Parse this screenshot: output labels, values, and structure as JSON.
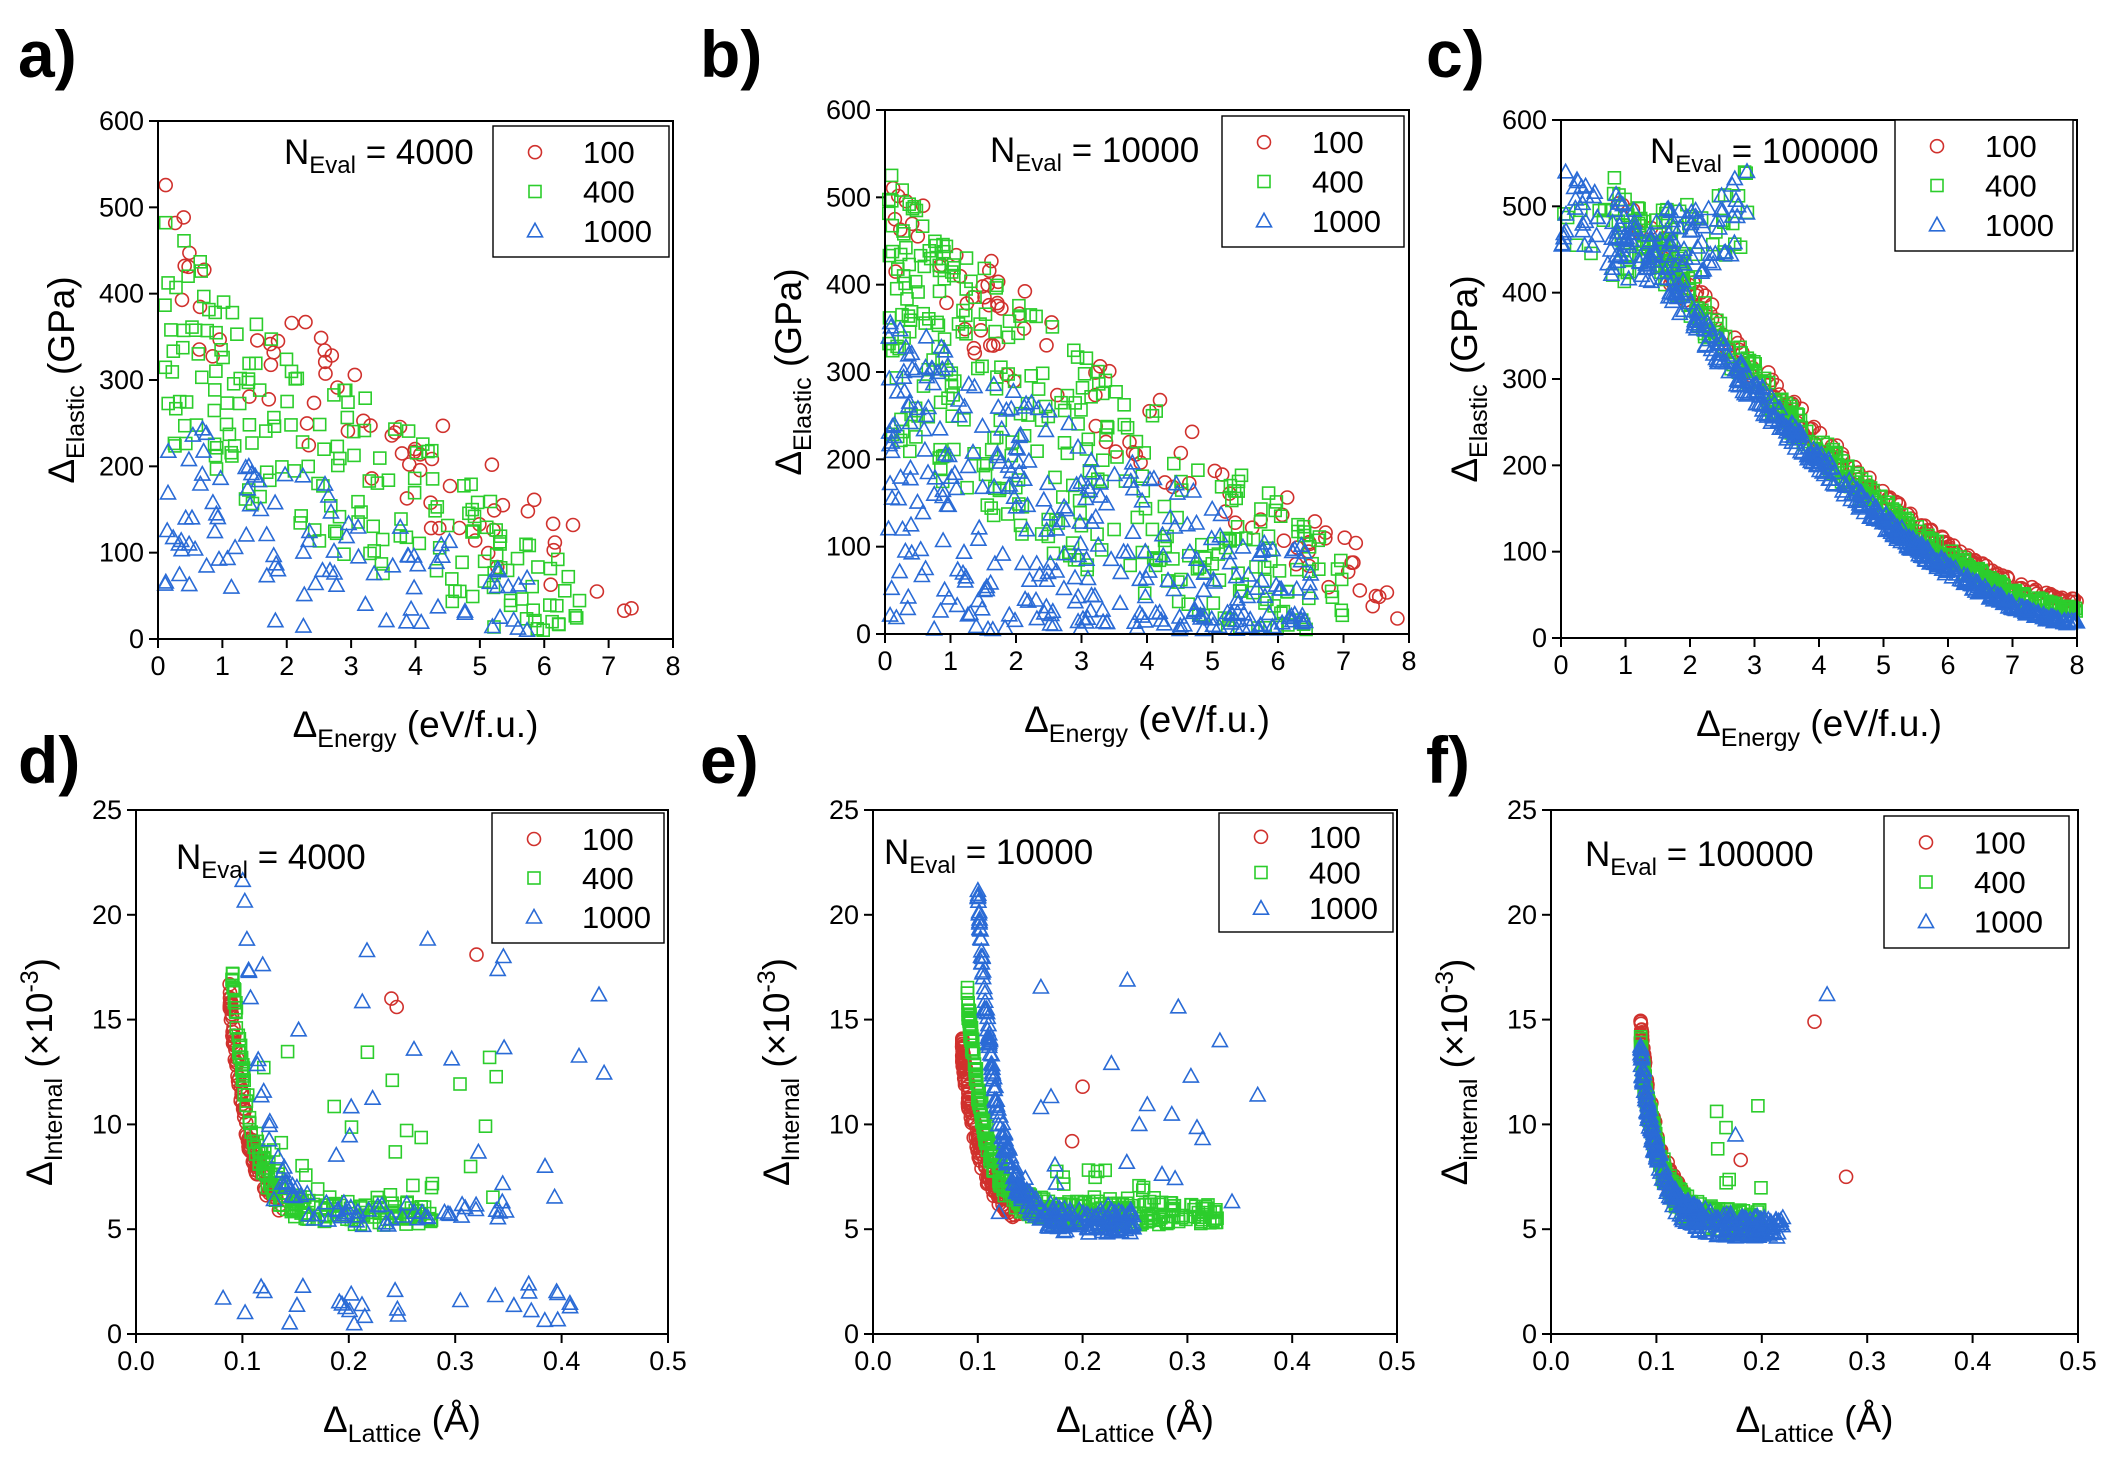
{
  "figure": {
    "width": 2104,
    "height": 1470
  },
  "colors": {
    "s100": "#d0312d",
    "s400": "#2ccd2c",
    "s1000": "#2a6bd6"
  },
  "chart_data": [
    {
      "id": "a",
      "panel_label": "a)",
      "type": "scatter",
      "annotation": "N_Eval = 4000",
      "annotation_main": "N",
      "annotation_sub": "Eval",
      "annotation_value": " = 4000",
      "xlabel_main": "Δ",
      "xlabel_sub": "Energy",
      "xlabel_rest": " (eV/f.u.)",
      "ylabel_main": "Δ",
      "ylabel_sub": "Elastic",
      "ylabel_rest": " (GPa)",
      "xlim": [
        0,
        8
      ],
      "ylim": [
        0,
        600
      ],
      "xticks": [
        0,
        1,
        2,
        3,
        4,
        5,
        6,
        7,
        8
      ],
      "xtick_labels": [
        "0",
        "1",
        "2",
        "3",
        "4",
        "5",
        "6",
        "7",
        "8"
      ],
      "yticks": [
        0,
        100,
        200,
        300,
        400,
        500,
        600
      ],
      "ytick_labels": [
        "0",
        "100",
        "200",
        "300",
        "400",
        "500",
        "600"
      ],
      "legend_position": "top-right",
      "series": [
        {
          "name": "100",
          "marker": "circle",
          "n": 70,
          "seed": 11,
          "shape": "decay",
          "gen": {
            "x0": 0.1,
            "x1": 7.5,
            "ytop": 470,
            "ybot": 40,
            "spread": 90,
            "floor": 10
          }
        },
        {
          "name": "400",
          "marker": "square",
          "n": 190,
          "seed": 23,
          "shape": "decay",
          "gen": {
            "x0": 0.1,
            "x1": 6.6,
            "ytop": 380,
            "ybot": 40,
            "spread": 130,
            "floor": 10
          }
        },
        {
          "name": "1000",
          "marker": "triangle",
          "n": 100,
          "seed": 37,
          "shape": "decay",
          "gen": {
            "x0": 0.1,
            "x1": 5.8,
            "ytop": 180,
            "ybot": 30,
            "spread": 110,
            "floor": 10
          }
        }
      ]
    },
    {
      "id": "b",
      "panel_label": "b)",
      "type": "scatter",
      "annotation": "N_Eval = 10000",
      "annotation_main": "N",
      "annotation_sub": "Eval",
      "annotation_value": " = 10000",
      "xlabel_main": "Δ",
      "xlabel_sub": "Energy",
      "xlabel_rest": " (eV/f.u.)",
      "ylabel_main": "Δ",
      "ylabel_sub": "Elastic",
      "ylabel_rest": " (GPa)",
      "xlim": [
        0,
        8
      ],
      "ylim": [
        0,
        600
      ],
      "xticks": [
        0,
        1,
        2,
        3,
        4,
        5,
        6,
        7,
        8
      ],
      "xtick_labels": [
        "0",
        "1",
        "2",
        "3",
        "4",
        "5",
        "6",
        "7",
        "8"
      ],
      "yticks": [
        0,
        100,
        200,
        300,
        400,
        500,
        600
      ],
      "ytick_labels": [
        "0",
        "100",
        "200",
        "300",
        "400",
        "500",
        "600"
      ],
      "legend_position": "top-right",
      "series": [
        {
          "name": "100",
          "marker": "circle",
          "n": 90,
          "seed": 41,
          "shape": "decay",
          "gen": {
            "x0": 0.1,
            "x1": 7.9,
            "ytop": 500,
            "ybot": 40,
            "spread": 70,
            "floor": 15
          }
        },
        {
          "name": "400",
          "marker": "square",
          "n": 330,
          "seed": 53,
          "shape": "decay",
          "gen": {
            "x0": 0.05,
            "x1": 7.0,
            "ytop": 400,
            "ybot": 30,
            "spread": 160,
            "floor": 5
          }
        },
        {
          "name": "1000",
          "marker": "triangle",
          "n": 330,
          "seed": 67,
          "shape": "decay",
          "gen": {
            "x0": 0.05,
            "x1": 6.5,
            "ytop": 220,
            "ybot": 20,
            "spread": 180,
            "floor": 5
          }
        }
      ]
    },
    {
      "id": "c",
      "panel_label": "c)",
      "type": "scatter",
      "annotation": "N_Eval = 100000",
      "annotation_main": "N",
      "annotation_sub": "Eval",
      "annotation_value": " = 100000",
      "xlabel_main": "Δ",
      "xlabel_sub": "Energy",
      "xlabel_rest": " (eV/f.u.)",
      "ylabel_main": "Δ",
      "ylabel_sub": "Elastic",
      "ylabel_rest": " (GPa)",
      "xlim": [
        0,
        8
      ],
      "ylim": [
        0,
        600
      ],
      "xticks": [
        0,
        1,
        2,
        3,
        4,
        5,
        6,
        7,
        8
      ],
      "xtick_labels": [
        "0",
        "1",
        "2",
        "3",
        "4",
        "5",
        "6",
        "7",
        "8"
      ],
      "yticks": [
        0,
        100,
        200,
        300,
        400,
        500,
        600
      ],
      "ytick_labels": [
        "0",
        "100",
        "200",
        "300",
        "400",
        "500",
        "600"
      ],
      "legend_position": "top-right",
      "series": [
        {
          "name": "100",
          "marker": "circle",
          "n": 180,
          "seed": 71,
          "shape": "band",
          "gen": {
            "x0": 0.0,
            "x1": 8.0,
            "spread": 45
          }
        },
        {
          "name": "400",
          "marker": "square",
          "n": 480,
          "seed": 83,
          "shape": "band",
          "gen": {
            "x0": 0.0,
            "x1": 8.0,
            "spread": 50
          }
        },
        {
          "name": "1000",
          "marker": "triangle",
          "n": 600,
          "seed": 97,
          "shape": "band",
          "gen": {
            "x0": 0.0,
            "x1": 8.0,
            "spread": 40
          }
        }
      ]
    },
    {
      "id": "d",
      "panel_label": "d)",
      "type": "scatter",
      "annotation": "N_Eval = 4000",
      "annotation_main": "N",
      "annotation_sub": "Eval",
      "annotation_value": " = 4000",
      "xlabel_main": "Δ",
      "xlabel_sub": "Lattice",
      "xlabel_rest": " (Å)",
      "ylabel_main": "Δ",
      "ylabel_sub": "Internal",
      "ylabel_rest": " (×10",
      "ylabel_exp": "-3",
      "ylabel_close": ")",
      "xlim": [
        0,
        0.5
      ],
      "ylim": [
        0,
        25
      ],
      "xticks": [
        0,
        0.1,
        0.2,
        0.3,
        0.4,
        0.5
      ],
      "xtick_labels": [
        "0.0",
        "0.1",
        "0.2",
        "0.3",
        "0.4",
        "0.5"
      ],
      "yticks": [
        0,
        5,
        10,
        15,
        20,
        25
      ],
      "ytick_labels": [
        "0",
        "5",
        "10",
        "15",
        "20",
        "25"
      ],
      "legend_position": "top-right",
      "series": [
        {
          "name": "100",
          "marker": "circle",
          "n": 110,
          "seed": 101,
          "shape": "elbow",
          "gen": {
            "xmin": 0.088,
            "xmax": 0.14,
            "ymin": 5.4,
            "ymax": 16,
            "outliers": [
              [
                0.24,
                16.0
              ],
              [
                0.245,
                15.6
              ],
              [
                0.32,
                18.1
              ]
            ]
          }
        },
        {
          "name": "400",
          "marker": "square",
          "n": 160,
          "seed": 113,
          "shape": "elbow",
          "gen": {
            "xmin": 0.09,
            "xmax": 0.28,
            "ymin": 5.6,
            "ymax": 17.5,
            "scatter": 40,
            "scatter_x": [
              0.12,
              0.34
            ],
            "scatter_y": [
              6,
              14
            ]
          }
        },
        {
          "name": "1000",
          "marker": "triangle",
          "n": 70,
          "seed": 127,
          "shape": "elbow",
          "gen": {
            "xmin": 0.1,
            "xmax": 0.35,
            "ymin": 5.5,
            "ymax": 22,
            "scatter": 25,
            "scatter_x": [
              0.1,
              0.45
            ],
            "scatter_y": [
              6,
              21.5
            ],
            "low": 30,
            "low_x": [
              0.08,
              0.41
            ],
            "low_y": [
              0.3,
              2.5
            ]
          }
        }
      ]
    },
    {
      "id": "e",
      "panel_label": "e)",
      "type": "scatter",
      "annotation": "N_Eval = 10000",
      "annotation_main": "N",
      "annotation_sub": "Eval",
      "annotation_value": " = 10000",
      "xlabel_main": "Δ",
      "xlabel_sub": "Lattice",
      "xlabel_rest": " (Å)",
      "ylabel_main": "Δ",
      "ylabel_sub": "Internal",
      "ylabel_rest": " (×10",
      "ylabel_exp": "-3",
      "ylabel_close": ")",
      "xlim": [
        0,
        0.5
      ],
      "ylim": [
        0,
        25
      ],
      "xticks": [
        0,
        0.1,
        0.2,
        0.3,
        0.4,
        0.5
      ],
      "xtick_labels": [
        "0.0",
        "0.1",
        "0.2",
        "0.3",
        "0.4",
        "0.5"
      ],
      "yticks": [
        0,
        5,
        10,
        15,
        20,
        25
      ],
      "ytick_labels": [
        "0",
        "5",
        "10",
        "15",
        "20",
        "25"
      ],
      "legend_position": "top-right",
      "series": [
        {
          "name": "100",
          "marker": "circle",
          "n": 170,
          "seed": 131,
          "shape": "elbow",
          "gen": {
            "xmin": 0.085,
            "xmax": 0.14,
            "ymin": 5.5,
            "ymax": 13.5,
            "outliers": [
              [
                0.2,
                11.8
              ],
              [
                0.19,
                9.2
              ]
            ]
          }
        },
        {
          "name": "400",
          "marker": "square",
          "n": 320,
          "seed": 149,
          "shape": "elbow",
          "gen": {
            "xmin": 0.09,
            "xmax": 0.33,
            "ymin": 5.6,
            "ymax": 16,
            "scatter": 30,
            "scatter_x": [
              0.12,
              0.3
            ],
            "scatter_y": [
              5.6,
              8
            ]
          }
        },
        {
          "name": "1000",
          "marker": "triangle",
          "n": 260,
          "seed": 163,
          "shape": "elbow",
          "gen": {
            "xmin": 0.1,
            "xmax": 0.25,
            "ymin": 5.2,
            "ymax": 20.8,
            "scatter": 25,
            "scatter_x": [
              0.12,
              0.37
            ],
            "scatter_y": [
              5.5,
              17
            ]
          }
        }
      ]
    },
    {
      "id": "f",
      "panel_label": "f)",
      "type": "scatter",
      "annotation": "N_Eval = 100000",
      "annotation_main": "N",
      "annotation_sub": "Eval",
      "annotation_value": " = 100000",
      "xlabel_main": "Δ",
      "xlabel_sub": "Lattice",
      "xlabel_rest": " (Å)",
      "ylabel_main": "Δ",
      "ylabel_sub": "internal",
      "ylabel_rest": " (×10",
      "ylabel_exp": "-3",
      "ylabel_close": ")",
      "xlim": [
        0,
        0.5
      ],
      "ylim": [
        0,
        25
      ],
      "xticks": [
        0,
        0.1,
        0.2,
        0.3,
        0.4,
        0.5
      ],
      "xtick_labels": [
        "0.0",
        "0.1",
        "0.2",
        "0.3",
        "0.4",
        "0.5"
      ],
      "yticks": [
        0,
        5,
        10,
        15,
        20,
        25
      ],
      "ytick_labels": [
        "0",
        "5",
        "10",
        "15",
        "20",
        "25"
      ],
      "legend_position": "top-right",
      "series": [
        {
          "name": "100",
          "marker": "circle",
          "n": 110,
          "seed": 173,
          "shape": "elbow",
          "gen": {
            "xmin": 0.085,
            "xmax": 0.13,
            "ymin": 5.3,
            "ymax": 14.4,
            "outliers": [
              [
                0.25,
                14.9
              ],
              [
                0.28,
                7.5
              ],
              [
                0.18,
                8.3
              ]
            ]
          }
        },
        {
          "name": "400",
          "marker": "square",
          "n": 260,
          "seed": 181,
          "shape": "elbow",
          "gen": {
            "xmin": 0.085,
            "xmax": 0.2,
            "ymin": 5.2,
            "ymax": 13.5,
            "scatter": 10,
            "scatter_x": [
              0.12,
              0.2
            ],
            "scatter_y": [
              5.5,
              11.4
            ]
          }
        },
        {
          "name": "1000",
          "marker": "triangle",
          "n": 300,
          "seed": 191,
          "shape": "elbow",
          "gen": {
            "xmin": 0.085,
            "xmax": 0.22,
            "ymin": 5.0,
            "ymax": 13.2,
            "outliers": [
              [
                0.262,
                16.2
              ],
              [
                0.175,
                9.5
              ]
            ]
          }
        }
      ]
    }
  ]
}
